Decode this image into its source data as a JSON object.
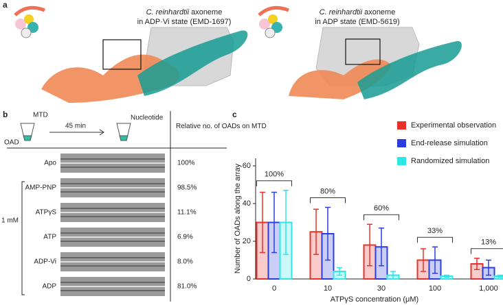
{
  "panels": {
    "a": {
      "label": "a",
      "maps": [
        {
          "species": "C. reinhardtii",
          "title_rest": "axoneme",
          "subtitle": "in ADP·Vi state (EMD-1697)"
        },
        {
          "species": "C. reinhardtii",
          "title_rest": "axoneme",
          "subtitle": "in ADP state (EMD-5619)"
        }
      ]
    },
    "b": {
      "label": "b",
      "mtd": "MTD",
      "time": "45 min",
      "nucleotide": "Nucleotide",
      "oad": "OAD",
      "header": "Relative no. of OADs on MTD",
      "concentration": "1 mM",
      "rows": [
        [
          "Apo",
          "100%"
        ],
        [
          "AMP-PNP",
          "98.5%"
        ],
        [
          "ATPγS",
          "11.1%"
        ],
        [
          "ATP",
          "6.9%"
        ],
        [
          "ADP-Vi",
          "8.0%"
        ],
        [
          "ADP",
          "81.0%"
        ]
      ]
    },
    "c": {
      "label": "c"
    }
  },
  "chart_data": {
    "type": "bar",
    "ylabel": "Number of OADs along the array",
    "xlabel": "ATPγS concentration (μM)",
    "categories": [
      "0",
      "10",
      "30",
      "100",
      "1,000"
    ],
    "series": [
      {
        "name": "Experimental observation",
        "color": "#e8312a",
        "values": [
          30,
          25,
          18,
          10,
          8
        ],
        "errors": [
          16,
          12,
          11,
          6,
          3
        ]
      },
      {
        "name": "End-release simulation",
        "color": "#2b3de0",
        "values": [
          30,
          24,
          17,
          10,
          6
        ],
        "errors": [
          16,
          14,
          10,
          7,
          4
        ]
      },
      {
        "name": "Randomized simulation",
        "color": "#2ee6e6",
        "values": [
          30,
          4,
          2,
          1.5,
          1.5
        ],
        "errors": [
          17,
          2,
          2,
          0.5,
          0.5
        ]
      }
    ],
    "annotations": [
      "100%",
      "80%",
      "60%",
      "33%",
      "13%"
    ],
    "ylim": [
      0,
      64
    ],
    "yticks": [
      0,
      20,
      40,
      60
    ]
  }
}
